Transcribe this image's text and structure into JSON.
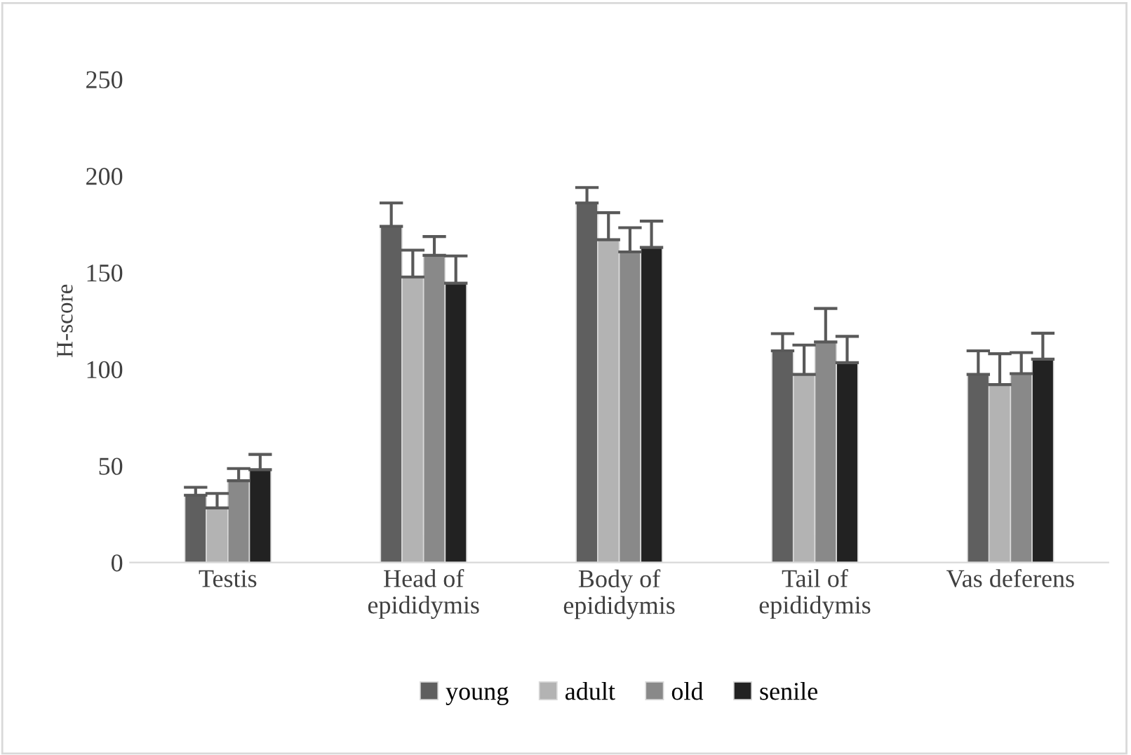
{
  "chart_data": {
    "type": "bar",
    "ylabel": "H-score",
    "categories": [
      "Testis",
      "Head of\nepididymis",
      "Body of\nepididymis",
      "Tail of\nepididymis",
      "Vas deferens"
    ],
    "series": [
      {
        "name": "young",
        "color": "#5f5f5f",
        "values": [
          34.8,
          173.9,
          186,
          109.5,
          97.3
        ],
        "errors": [
          [
            34.8,
            38.9
          ],
          [
            173.9,
            186
          ],
          [
            186,
            194
          ],
          [
            109.5,
            118.4
          ],
          [
            97.3,
            109.5
          ]
        ]
      },
      {
        "name": "adult",
        "color": "#b3b3b3",
        "values": [
          28.2,
          147.7,
          167,
          97.3,
          92
        ],
        "errors": [
          [
            28.2,
            35.7
          ],
          [
            147.7,
            161.6
          ],
          [
            167,
            181
          ],
          [
            97.3,
            112.5
          ],
          [
            92,
            108
          ]
        ]
      },
      {
        "name": "old",
        "color": "#898989",
        "values": [
          42.3,
          158.9,
          160.7,
          114.1,
          97.7
        ],
        "errors": [
          [
            42.3,
            48.6
          ],
          [
            158.9,
            168.6
          ],
          [
            160.7,
            173.2
          ],
          [
            114.1,
            131.4
          ],
          [
            97.7,
            108.6
          ]
        ]
      },
      {
        "name": "senile",
        "color": "#222222",
        "values": [
          48,
          144.5,
          163,
          103.4,
          105.2
        ],
        "errors": [
          [
            48,
            55.9
          ],
          [
            144.5,
            158.6
          ],
          [
            163,
            176.6
          ],
          [
            103.4,
            117
          ],
          [
            105.2,
            118.6
          ]
        ]
      }
    ],
    "ylim": [
      0,
      250
    ],
    "yticks": [
      0,
      50,
      100,
      150,
      200,
      250
    ],
    "grid": false,
    "legend": "bottom"
  }
}
